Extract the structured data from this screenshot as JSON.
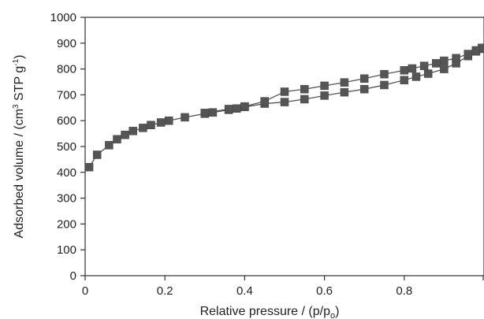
{
  "chart_data": {
    "type": "scatter",
    "title": "",
    "xlabel": "Relative pressure / (p/p",
    "xlabel_sub": "o",
    "xlabel_tail": ")",
    "ylabel": "Adsorbed volume / (cm",
    "ylabel_sup1": "3",
    "ylabel_mid": " STP g",
    "ylabel_sup2": "-1",
    "ylabel_tail": ")",
    "xlim": [
      0,
      1.0
    ],
    "ylim": [
      0,
      1000
    ],
    "x_ticks": [
      0,
      0.2,
      0.4,
      0.6,
      0.8
    ],
    "x_tick_labels": [
      "0",
      "0.2",
      "0.4",
      "0.6",
      "0.8"
    ],
    "y_ticks": [
      0,
      100,
      200,
      300,
      400,
      500,
      600,
      700,
      800,
      900,
      1000
    ],
    "y_tick_labels": [
      "0",
      "100",
      "200",
      "300",
      "400",
      "500",
      "600",
      "700",
      "800",
      "900",
      "1000"
    ],
    "marker": "square",
    "series_color": "#555555",
    "grid": false,
    "series": [
      {
        "x": [
          0.01,
          0.03,
          0.06,
          0.08,
          0.1,
          0.12,
          0.145,
          0.165,
          0.19,
          0.21,
          0.25,
          0.3,
          0.32,
          0.36,
          0.38,
          0.4,
          0.45,
          0.5,
          0.55,
          0.6,
          0.65,
          0.7,
          0.75,
          0.8,
          0.83,
          0.86,
          0.9,
          0.93,
          0.96,
          0.98,
          0.995
        ],
        "y": [
          420,
          468,
          505,
          528,
          545,
          560,
          572,
          583,
          593,
          600,
          613,
          627,
          632,
          642,
          647,
          653,
          666,
          672,
          683,
          697,
          710,
          722,
          738,
          757,
          770,
          782,
          800,
          822,
          850,
          868,
          878
        ]
      },
      {
        "x": [
          0.995,
          0.98,
          0.96,
          0.93,
          0.9,
          0.88,
          0.85,
          0.82,
          0.8,
          0.75,
          0.7,
          0.65,
          0.6,
          0.55,
          0.5,
          0.45,
          0.4,
          0.36,
          0.3
        ],
        "y": [
          882,
          872,
          858,
          842,
          832,
          822,
          812,
          802,
          795,
          780,
          763,
          748,
          735,
          722,
          712,
          675,
          655,
          645,
          630
        ]
      }
    ]
  }
}
